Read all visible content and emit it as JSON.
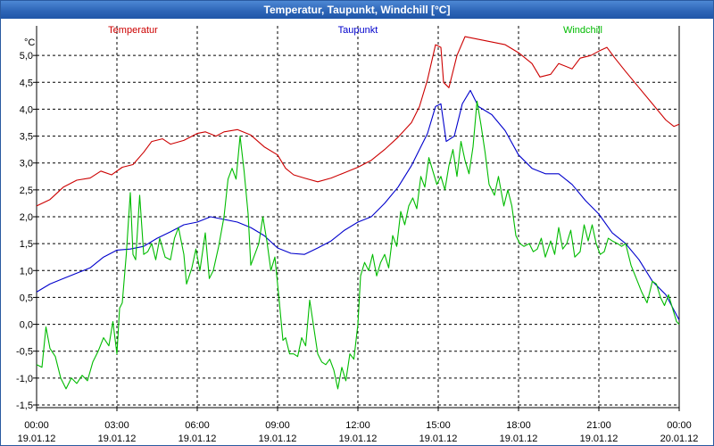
{
  "window": {
    "title": "Temperatur, Taupunkt, Windchill [°C]"
  },
  "chart_data": {
    "type": "line",
    "title": "Temperatur, Taupunkt, Windchill [°C]",
    "ylabel": "°C",
    "ylim": [
      -1.55,
      5.55
    ],
    "xlim": [
      0,
      24
    ],
    "grid": true,
    "yticks": [
      -1.5,
      -1.0,
      -0.5,
      0.0,
      0.5,
      1.0,
      1.5,
      2.0,
      2.5,
      3.0,
      3.5,
      4.0,
      4.5,
      5.0
    ],
    "ytick_labels": [
      "-1,5",
      "-1,0",
      "-0,5",
      "0,0",
      "0,5",
      "1,0",
      "1,5",
      "2,0",
      "2,5",
      "3,0",
      "3,5",
      "4,0",
      "4,5",
      "5,0"
    ],
    "xticks": [
      {
        "x": 0,
        "time": "00:00",
        "date": "19.01.12"
      },
      {
        "x": 3,
        "time": "03:00",
        "date": "19.01.12"
      },
      {
        "x": 6,
        "time": "06:00",
        "date": "19.01.12"
      },
      {
        "x": 9,
        "time": "09:00",
        "date": "19.01.12"
      },
      {
        "x": 12,
        "time": "12:00",
        "date": "19.01.12"
      },
      {
        "x": 15,
        "time": "15:00",
        "date": "19.01.12"
      },
      {
        "x": 18,
        "time": "18:00",
        "date": "19.01.12"
      },
      {
        "x": 21,
        "time": "21:00",
        "date": "19.01.12"
      },
      {
        "x": 24,
        "time": "00:00",
        "date": "20.01.12"
      }
    ],
    "series": [
      {
        "name": "Temperatur",
        "color": "#cc0000",
        "points": [
          [
            0,
            2.2
          ],
          [
            0.5,
            2.32
          ],
          [
            1,
            2.55
          ],
          [
            1.5,
            2.68
          ],
          [
            2,
            2.72
          ],
          [
            2.4,
            2.85
          ],
          [
            2.8,
            2.78
          ],
          [
            3.2,
            2.92
          ],
          [
            3.6,
            2.97
          ],
          [
            4,
            3.2
          ],
          [
            4.3,
            3.4
          ],
          [
            4.7,
            3.45
          ],
          [
            5,
            3.35
          ],
          [
            5.5,
            3.42
          ],
          [
            6,
            3.55
          ],
          [
            6.3,
            3.58
          ],
          [
            6.7,
            3.5
          ],
          [
            7,
            3.58
          ],
          [
            7.5,
            3.62
          ],
          [
            8,
            3.52
          ],
          [
            8.5,
            3.3
          ],
          [
            9,
            3.15
          ],
          [
            9.3,
            2.9
          ],
          [
            9.6,
            2.78
          ],
          [
            10,
            2.72
          ],
          [
            10.5,
            2.65
          ],
          [
            11,
            2.72
          ],
          [
            11.5,
            2.82
          ],
          [
            12,
            2.92
          ],
          [
            12.5,
            3.05
          ],
          [
            13,
            3.25
          ],
          [
            13.5,
            3.48
          ],
          [
            14,
            3.75
          ],
          [
            14.3,
            4.05
          ],
          [
            14.6,
            4.55
          ],
          [
            14.9,
            5.2
          ],
          [
            15.1,
            5.15
          ],
          [
            15.2,
            4.5
          ],
          [
            15.4,
            4.4
          ],
          [
            15.7,
            5.0
          ],
          [
            16,
            5.35
          ],
          [
            16.5,
            5.3
          ],
          [
            17,
            5.25
          ],
          [
            17.5,
            5.2
          ],
          [
            18,
            5.05
          ],
          [
            18.5,
            4.85
          ],
          [
            18.8,
            4.6
          ],
          [
            19.2,
            4.65
          ],
          [
            19.5,
            4.85
          ],
          [
            20,
            4.75
          ],
          [
            20.3,
            4.95
          ],
          [
            20.7,
            5.0
          ],
          [
            21,
            5.08
          ],
          [
            21.3,
            5.15
          ],
          [
            21.6,
            4.95
          ],
          [
            22,
            4.7
          ],
          [
            22.5,
            4.4
          ],
          [
            23,
            4.1
          ],
          [
            23.5,
            3.8
          ],
          [
            23.8,
            3.68
          ],
          [
            24,
            3.72
          ]
        ]
      },
      {
        "name": "Taupunkt",
        "color": "#0000cc",
        "points": [
          [
            0,
            0.6
          ],
          [
            0.5,
            0.75
          ],
          [
            1,
            0.85
          ],
          [
            1.5,
            0.95
          ],
          [
            2,
            1.05
          ],
          [
            2.5,
            1.25
          ],
          [
            3,
            1.38
          ],
          [
            3.5,
            1.4
          ],
          [
            4,
            1.45
          ],
          [
            4.5,
            1.6
          ],
          [
            5,
            1.72
          ],
          [
            5.5,
            1.85
          ],
          [
            6,
            1.9
          ],
          [
            6.5,
            2.0
          ],
          [
            7,
            1.95
          ],
          [
            7.5,
            1.9
          ],
          [
            8,
            1.8
          ],
          [
            8.5,
            1.65
          ],
          [
            9,
            1.42
          ],
          [
            9.5,
            1.32
          ],
          [
            10,
            1.3
          ],
          [
            10.5,
            1.42
          ],
          [
            11,
            1.55
          ],
          [
            11.5,
            1.75
          ],
          [
            12,
            1.9
          ],
          [
            12.5,
            2.0
          ],
          [
            13,
            2.25
          ],
          [
            13.5,
            2.55
          ],
          [
            14,
            2.95
          ],
          [
            14.3,
            3.25
          ],
          [
            14.6,
            3.55
          ],
          [
            14.9,
            4.05
          ],
          [
            15.1,
            4.1
          ],
          [
            15.3,
            3.4
          ],
          [
            15.6,
            3.5
          ],
          [
            15.9,
            4.1
          ],
          [
            16.2,
            4.35
          ],
          [
            16.5,
            4.05
          ],
          [
            17,
            3.9
          ],
          [
            17.5,
            3.6
          ],
          [
            18,
            3.15
          ],
          [
            18.5,
            2.9
          ],
          [
            19,
            2.8
          ],
          [
            19.5,
            2.8
          ],
          [
            20,
            2.6
          ],
          [
            20.5,
            2.3
          ],
          [
            21,
            2.05
          ],
          [
            21.5,
            1.7
          ],
          [
            22,
            1.5
          ],
          [
            22.5,
            1.2
          ],
          [
            23,
            0.8
          ],
          [
            23.5,
            0.55
          ],
          [
            24,
            0.08
          ]
        ]
      },
      {
        "name": "Windchill",
        "color": "#00bb00",
        "points": [
          [
            0,
            -0.75
          ],
          [
            0.2,
            -0.8
          ],
          [
            0.35,
            -0.05
          ],
          [
            0.5,
            -0.45
          ],
          [
            0.7,
            -0.6
          ],
          [
            0.9,
            -1.0
          ],
          [
            1.1,
            -1.2
          ],
          [
            1.3,
            -1.0
          ],
          [
            1.5,
            -1.1
          ],
          [
            1.7,
            -0.95
          ],
          [
            1.9,
            -1.05
          ],
          [
            2.1,
            -0.7
          ],
          [
            2.3,
            -0.5
          ],
          [
            2.5,
            -0.25
          ],
          [
            2.7,
            -0.4
          ],
          [
            2.85,
            0.05
          ],
          [
            3.0,
            -0.55
          ],
          [
            3.1,
            0.3
          ],
          [
            3.2,
            0.4
          ],
          [
            3.35,
            1.3
          ],
          [
            3.5,
            2.45
          ],
          [
            3.6,
            1.3
          ],
          [
            3.7,
            1.2
          ],
          [
            3.85,
            2.4
          ],
          [
            4.0,
            1.3
          ],
          [
            4.15,
            1.35
          ],
          [
            4.3,
            1.5
          ],
          [
            4.45,
            1.2
          ],
          [
            4.6,
            1.6
          ],
          [
            4.8,
            1.25
          ],
          [
            5.0,
            1.2
          ],
          [
            5.15,
            1.6
          ],
          [
            5.3,
            1.8
          ],
          [
            5.5,
            1.3
          ],
          [
            5.6,
            0.75
          ],
          [
            5.8,
            1.05
          ],
          [
            5.95,
            1.4
          ],
          [
            6.1,
            1.0
          ],
          [
            6.3,
            1.7
          ],
          [
            6.45,
            0.85
          ],
          [
            6.6,
            1.0
          ],
          [
            6.8,
            1.45
          ],
          [
            7.0,
            2.0
          ],
          [
            7.15,
            2.7
          ],
          [
            7.3,
            2.9
          ],
          [
            7.45,
            2.7
          ],
          [
            7.6,
            3.5
          ],
          [
            7.75,
            2.85
          ],
          [
            7.9,
            2.05
          ],
          [
            8.0,
            1.1
          ],
          [
            8.15,
            1.3
          ],
          [
            8.3,
            1.5
          ],
          [
            8.45,
            2.0
          ],
          [
            8.6,
            1.55
          ],
          [
            8.75,
            1.0
          ],
          [
            8.9,
            1.25
          ],
          [
            9.05,
            0.5
          ],
          [
            9.2,
            -0.3
          ],
          [
            9.3,
            -0.25
          ],
          [
            9.45,
            -0.55
          ],
          [
            9.6,
            -0.55
          ],
          [
            9.75,
            -0.6
          ],
          [
            9.9,
            -0.25
          ],
          [
            10.05,
            -0.4
          ],
          [
            10.2,
            0.45
          ],
          [
            10.35,
            -0.05
          ],
          [
            10.5,
            -0.55
          ],
          [
            10.65,
            -0.7
          ],
          [
            10.8,
            -0.75
          ],
          [
            10.95,
            -0.65
          ],
          [
            11.1,
            -0.85
          ],
          [
            11.25,
            -1.2
          ],
          [
            11.4,
            -0.8
          ],
          [
            11.55,
            -1.05
          ],
          [
            11.7,
            -0.55
          ],
          [
            11.85,
            -0.65
          ],
          [
            12.0,
            0.0
          ],
          [
            12.1,
            0.9
          ],
          [
            12.25,
            1.15
          ],
          [
            12.4,
            1.0
          ],
          [
            12.55,
            1.3
          ],
          [
            12.7,
            0.9
          ],
          [
            12.85,
            1.15
          ],
          [
            13.0,
            1.3
          ],
          [
            13.15,
            1.05
          ],
          [
            13.3,
            1.65
          ],
          [
            13.45,
            1.45
          ],
          [
            13.6,
            2.1
          ],
          [
            13.75,
            1.85
          ],
          [
            13.9,
            2.2
          ],
          [
            14.05,
            2.35
          ],
          [
            14.2,
            2.15
          ],
          [
            14.35,
            2.75
          ],
          [
            14.5,
            2.55
          ],
          [
            14.65,
            3.1
          ],
          [
            14.8,
            2.85
          ],
          [
            14.95,
            2.6
          ],
          [
            15.1,
            2.75
          ],
          [
            15.25,
            2.5
          ],
          [
            15.4,
            2.95
          ],
          [
            15.55,
            3.25
          ],
          [
            15.7,
            2.75
          ],
          [
            15.85,
            3.4
          ],
          [
            16.0,
            3.05
          ],
          [
            16.15,
            2.8
          ],
          [
            16.3,
            3.3
          ],
          [
            16.45,
            4.15
          ],
          [
            16.6,
            3.7
          ],
          [
            16.75,
            3.2
          ],
          [
            16.9,
            2.6
          ],
          [
            17.1,
            2.4
          ],
          [
            17.25,
            2.75
          ],
          [
            17.45,
            2.2
          ],
          [
            17.6,
            2.5
          ],
          [
            17.75,
            2.2
          ],
          [
            17.9,
            1.65
          ],
          [
            18.05,
            1.5
          ],
          [
            18.2,
            1.45
          ],
          [
            18.4,
            1.5
          ],
          [
            18.55,
            1.35
          ],
          [
            18.7,
            1.4
          ],
          [
            18.85,
            1.6
          ],
          [
            19.0,
            1.25
          ],
          [
            19.2,
            1.55
          ],
          [
            19.35,
            1.3
          ],
          [
            19.5,
            1.8
          ],
          [
            19.65,
            1.4
          ],
          [
            19.8,
            1.5
          ],
          [
            19.95,
            1.75
          ],
          [
            20.1,
            1.25
          ],
          [
            20.3,
            1.35
          ],
          [
            20.45,
            1.85
          ],
          [
            20.6,
            1.55
          ],
          [
            20.75,
            1.85
          ],
          [
            20.9,
            1.5
          ],
          [
            21.05,
            1.3
          ],
          [
            21.2,
            1.35
          ],
          [
            21.35,
            1.6
          ],
          [
            21.5,
            1.55
          ],
          [
            21.7,
            1.5
          ],
          [
            21.85,
            1.45
          ],
          [
            22.0,
            1.5
          ],
          [
            22.2,
            1.1
          ],
          [
            22.4,
            0.85
          ],
          [
            22.6,
            0.6
          ],
          [
            22.8,
            0.4
          ],
          [
            23.0,
            0.8
          ],
          [
            23.15,
            0.75
          ],
          [
            23.3,
            0.5
          ],
          [
            23.45,
            0.35
          ],
          [
            23.6,
            0.55
          ],
          [
            23.75,
            0.3
          ],
          [
            23.9,
            0.05
          ],
          [
            24.0,
            0.0
          ]
        ]
      }
    ]
  }
}
